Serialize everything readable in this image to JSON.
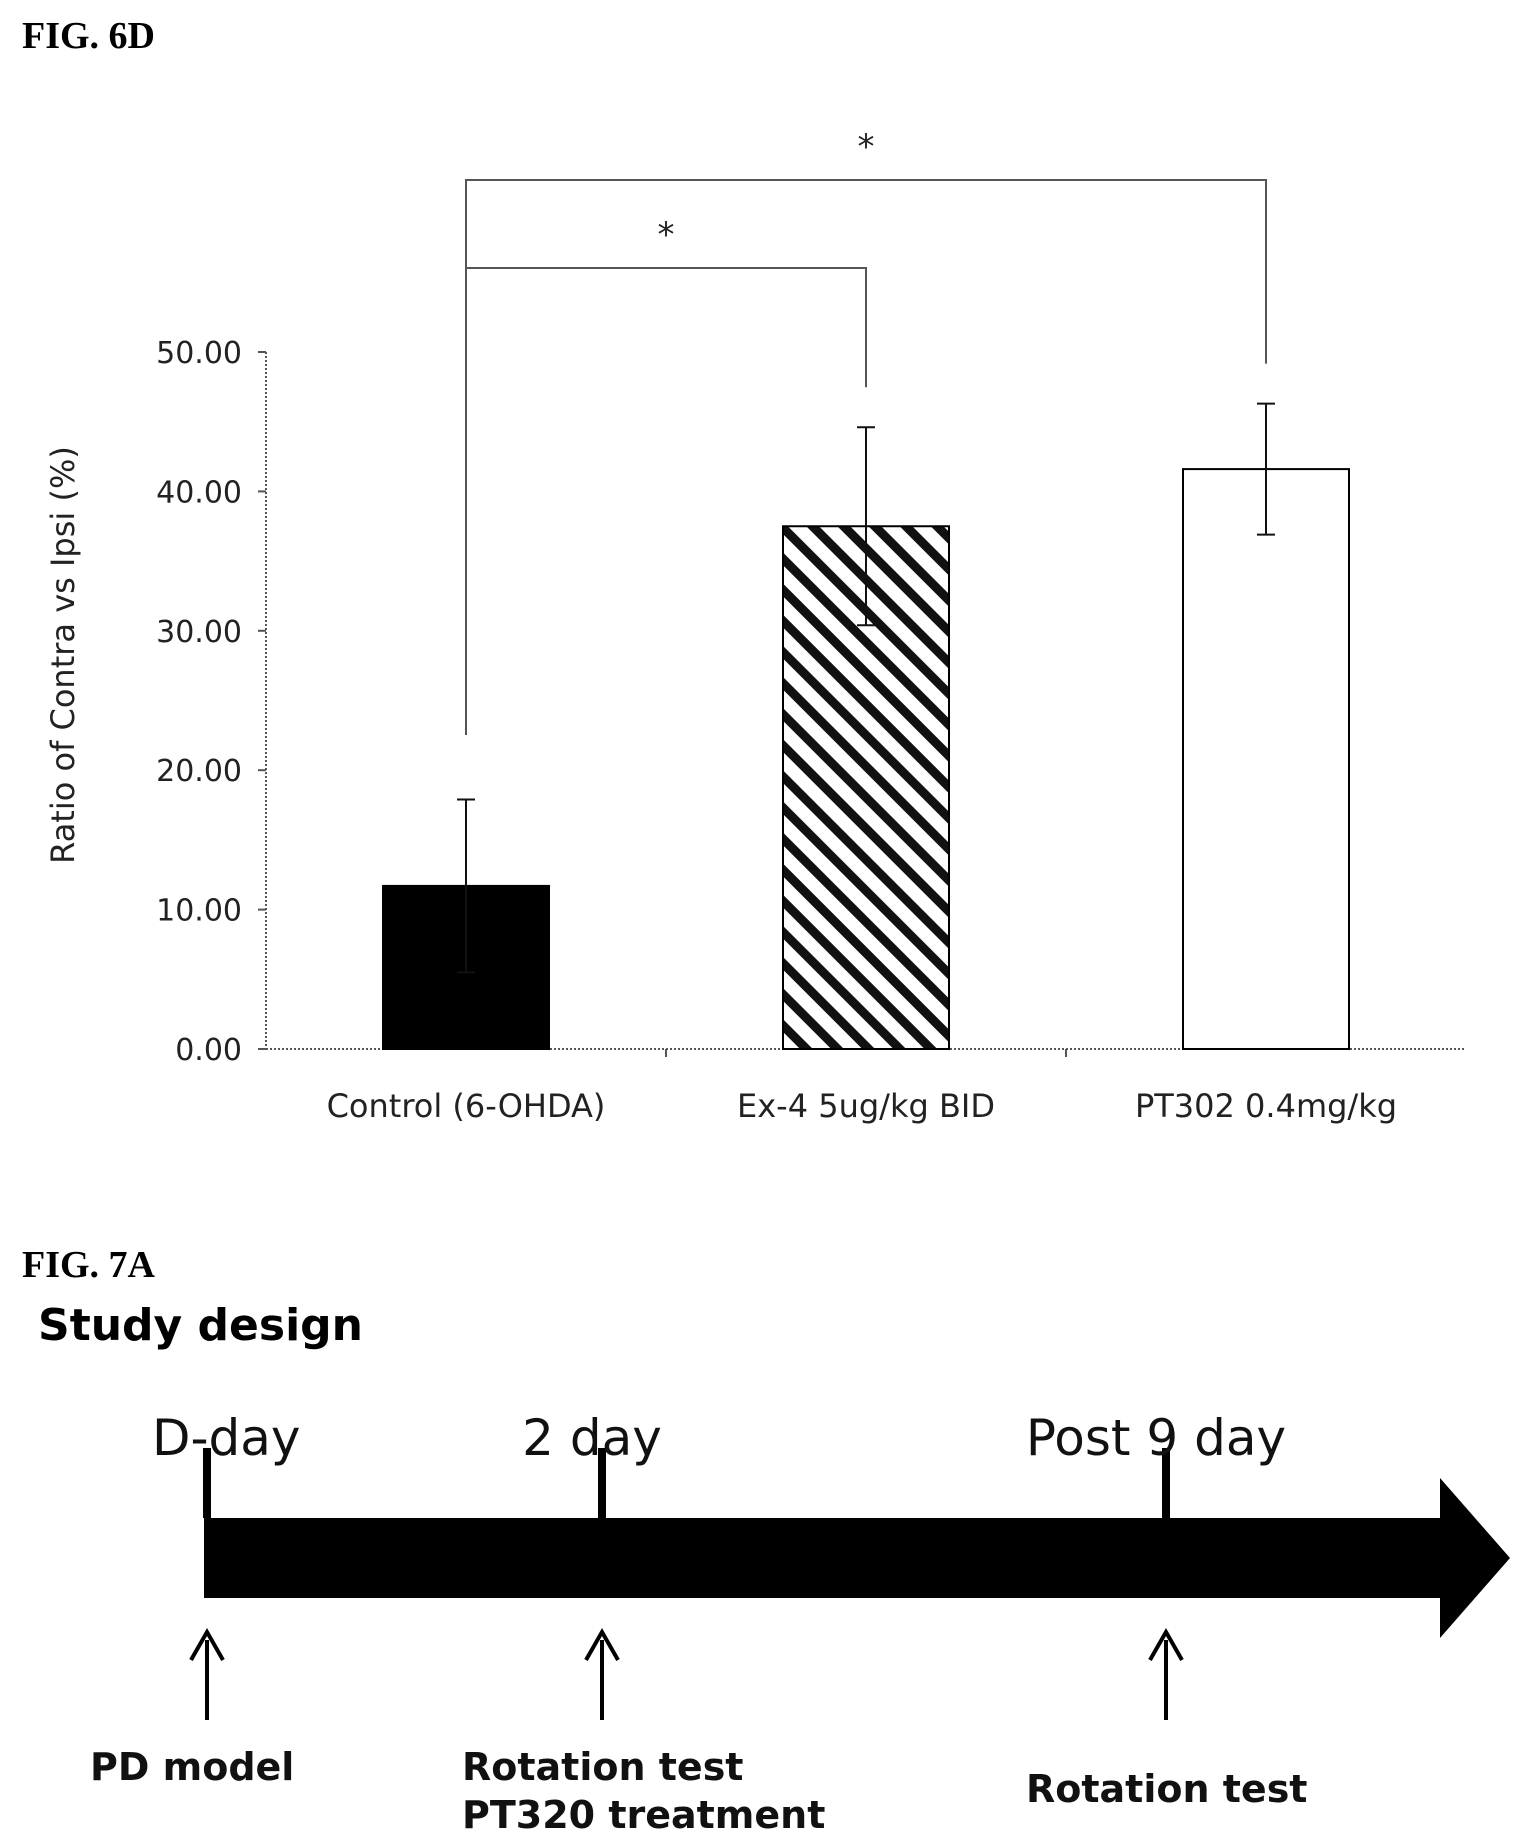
{
  "fig6d": {
    "label": "FIG. 6D"
  },
  "chart_data": {
    "type": "bar",
    "title": "",
    "xlabel": "",
    "ylabel": "Ratio of Contra vs Ipsi (%)",
    "ylim": [
      0,
      50
    ],
    "yticks": [
      "0.00",
      "10.00",
      "20.00",
      "30.00",
      "40.00",
      "50.00"
    ],
    "categories": [
      "Control (6-OHDA)",
      "Ex-4 5ug/kg BID",
      "PT302 0.4mg/kg"
    ],
    "values": [
      11.7,
      37.5,
      41.6
    ],
    "errors": [
      6.2,
      7.1,
      4.7
    ],
    "fills": [
      "solid",
      "hatched",
      "empty"
    ],
    "significance": [
      {
        "from": 0,
        "to": 1,
        "mark": "*"
      },
      {
        "from": 0,
        "to": 2,
        "mark": "*"
      }
    ]
  },
  "fig7a": {
    "label": "FIG. 7A",
    "title": "Study design",
    "timeline": [
      {
        "top": "D-day",
        "bottom": [
          "PD model"
        ]
      },
      {
        "top": "2 day",
        "bottom": [
          "Rotation test",
          "PT320 treatment"
        ]
      },
      {
        "top": "Post 9 day",
        "bottom": [
          "Rotation test"
        ]
      }
    ]
  }
}
